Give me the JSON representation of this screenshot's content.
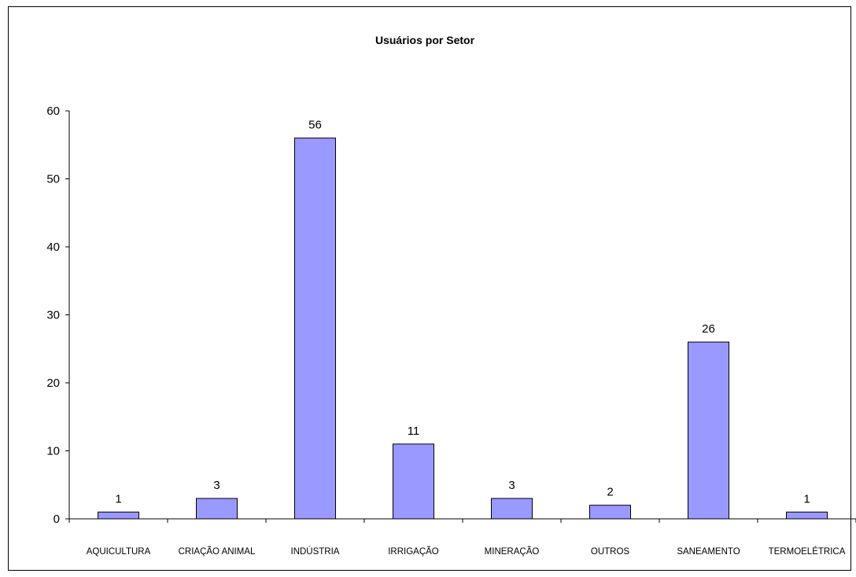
{
  "chart_data": {
    "type": "bar",
    "title": "Usuários por Setor",
    "xlabel": "",
    "ylabel": "",
    "categories": [
      "AQUICULTURA",
      "CRIAÇÃO ANIMAL",
      "INDÚSTRIA",
      "IRRIGAÇÃO",
      "MINERAÇÃO",
      "OUTROS",
      "SANEAMENTO",
      "TERMOELÉTRICA"
    ],
    "values": [
      1,
      3,
      56,
      11,
      3,
      2,
      26,
      1
    ],
    "ylim": [
      0,
      60
    ],
    "yticks": [
      0,
      10,
      20,
      30,
      40,
      50,
      60
    ],
    "grid": false,
    "legend": "none",
    "bar_color": "#9999FF",
    "data_labels": true
  }
}
